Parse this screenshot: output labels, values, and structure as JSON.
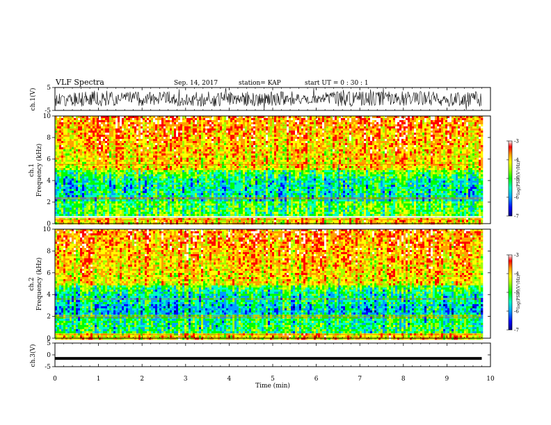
{
  "header": {
    "title": "VLF Spectra",
    "date": "Sep. 14, 2017",
    "station": "station= KAP",
    "start": "start  UT =   0  : 30 : 1"
  },
  "chart_data": [
    {
      "type": "line",
      "panel": "ch1-waveform",
      "ylabel": "ch.1(V)",
      "ylim": [
        -5,
        5
      ],
      "yticks": [
        "5",
        "-5"
      ],
      "xlim": [
        0,
        10
      ],
      "line_color": "#000000"
    },
    {
      "type": "heatmap",
      "panel": "ch1-spectrogram",
      "ylabel_channel": "ch.1",
      "ylabel": "Frequency  (kHz)",
      "ylim": [
        0,
        10
      ],
      "yticks": [
        "0",
        "2",
        "4",
        "6",
        "8",
        "10"
      ],
      "xlim": [
        0,
        9.8
      ],
      "colorbar": {
        "label": "log(PSD)(V²/Hz)",
        "range": [
          -7,
          -3
        ],
        "ticks": [
          "-3",
          "-4",
          "-5",
          "-6",
          "-7"
        ],
        "colors": [
          "#00007f",
          "#0000ff",
          "#00a0ff",
          "#00ffc0",
          "#00ff00",
          "#a0ff00",
          "#ffff00",
          "#ffa000",
          "#ff0000",
          "#ffffff"
        ]
      }
    },
    {
      "type": "heatmap",
      "panel": "ch2-spectrogram",
      "ylabel_channel": "ch.2",
      "ylabel": "Frequency  (kHz)",
      "ylim": [
        0,
        10
      ],
      "yticks": [
        "0",
        "2",
        "4",
        "6",
        "8",
        "10"
      ],
      "xlim": [
        0,
        9.8
      ],
      "colorbar": {
        "label": "log(PSD)(V²/Hz)",
        "range": [
          -7,
          -3
        ],
        "ticks": [
          "-3",
          "-4",
          "-5",
          "-6",
          "-7"
        ],
        "colors": [
          "#00007f",
          "#0000ff",
          "#00a0ff",
          "#00ffc0",
          "#00ff00",
          "#a0ff00",
          "#ffff00",
          "#ffa000",
          "#ff0000",
          "#ffffff"
        ]
      }
    },
    {
      "type": "line",
      "panel": "ch3-waveform",
      "ylabel": "ch.3(V)",
      "ylim": [
        -5,
        5
      ],
      "yticks": [
        "5",
        "0",
        "-5"
      ],
      "x": [
        0,
        9.8
      ],
      "y": [
        -1.5,
        -1.5
      ],
      "xlim": [
        0,
        10
      ],
      "line_color": "#000000"
    }
  ],
  "xaxis": {
    "label": "Time  (min)",
    "ticks": [
      "0",
      "1",
      "2",
      "3",
      "4",
      "5",
      "6",
      "7",
      "8",
      "9",
      "10"
    ]
  }
}
